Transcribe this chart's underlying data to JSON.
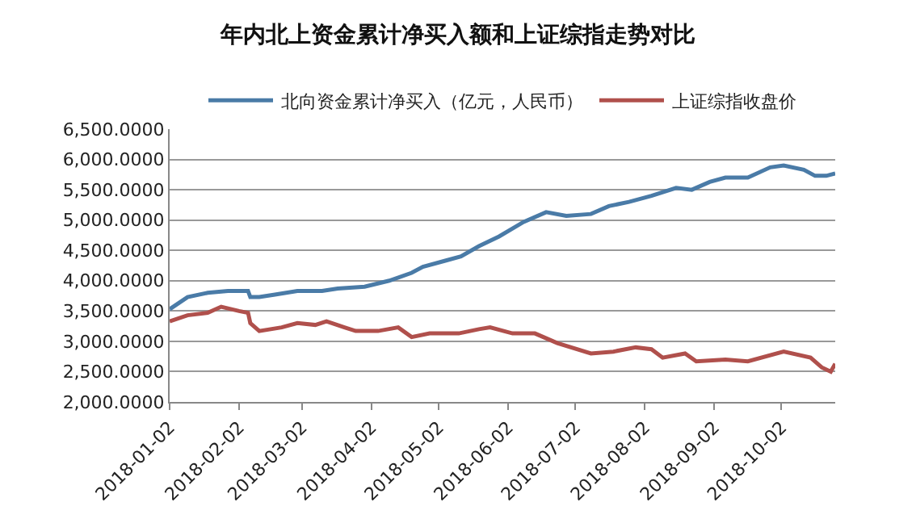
{
  "chart_data": {
    "type": "line",
    "title": "年内北上资金累计净买入额和上证综指走势对比",
    "xlim": [
      "2018-01-02",
      "2018-10-26"
    ],
    "xticks": [
      "2018-01-02",
      "2018-02-02",
      "2018-03-02",
      "2018-04-02",
      "2018-05-02",
      "2018-06-02",
      "2018-07-02",
      "2018-08-02",
      "2018-09-02",
      "2018-10-02"
    ],
    "ylim": [
      2000,
      6500
    ],
    "yticks": [
      {
        "value": 2000,
        "label": "2,000.0000"
      },
      {
        "value": 2500,
        "label": "2,500.0000"
      },
      {
        "value": 3000,
        "label": "3,000.0000"
      },
      {
        "value": 3500,
        "label": "3,500.0000"
      },
      {
        "value": 4000,
        "label": "4,000.0000"
      },
      {
        "value": 4500,
        "label": "4,500.0000"
      },
      {
        "value": 5000,
        "label": "5,000.0000"
      },
      {
        "value": 5500,
        "label": "5,500.0000"
      },
      {
        "value": 6000,
        "label": "6,000.0000"
      },
      {
        "value": 6500,
        "label": "6,500.0000"
      }
    ],
    "grid": "y",
    "legend": "top",
    "marker": "none",
    "line_style": "solid",
    "series": [
      {
        "name": "北向资金累计净买入（亿元，人民币）",
        "color": "#4a7ba7",
        "x": [
          "2018-01-02",
          "2018-01-10",
          "2018-01-19",
          "2018-01-28",
          "2018-02-06",
          "2018-02-07",
          "2018-02-11",
          "2018-02-18",
          "2018-02-28",
          "2018-03-11",
          "2018-03-18",
          "2018-03-30",
          "2018-04-10",
          "2018-04-20",
          "2018-04-25",
          "2018-05-05",
          "2018-05-12",
          "2018-05-20",
          "2018-05-29",
          "2018-06-09",
          "2018-06-19",
          "2018-06-28",
          "2018-07-09",
          "2018-07-17",
          "2018-07-26",
          "2018-08-05",
          "2018-08-16",
          "2018-08-23",
          "2018-08-31",
          "2018-09-07",
          "2018-09-17",
          "2018-09-27",
          "2018-10-03",
          "2018-10-12",
          "2018-10-17",
          "2018-10-22",
          "2018-10-26"
        ],
        "values": [
          3530,
          3730,
          3800,
          3830,
          3830,
          3730,
          3730,
          3770,
          3830,
          3830,
          3870,
          3900,
          4000,
          4130,
          4230,
          4330,
          4400,
          4570,
          4730,
          4970,
          5130,
          5070,
          5100,
          5230,
          5300,
          5400,
          5530,
          5500,
          5630,
          5700,
          5700,
          5870,
          5900,
          5830,
          5730,
          5730,
          5770
        ]
      },
      {
        "name": "上证综指收盘价",
        "color": "#b0504c",
        "x": [
          "2018-01-02",
          "2018-01-10",
          "2018-01-19",
          "2018-01-25",
          "2018-02-02",
          "2018-02-06",
          "2018-02-07",
          "2018-02-11",
          "2018-02-21",
          "2018-02-28",
          "2018-03-08",
          "2018-03-13",
          "2018-03-21",
          "2018-03-26",
          "2018-04-05",
          "2018-04-14",
          "2018-04-20",
          "2018-04-28",
          "2018-05-11",
          "2018-05-20",
          "2018-05-25",
          "2018-06-04",
          "2018-06-14",
          "2018-06-24",
          "2018-07-09",
          "2018-07-19",
          "2018-07-29",
          "2018-08-05",
          "2018-08-10",
          "2018-08-20",
          "2018-08-25",
          "2018-09-07",
          "2018-09-17",
          "2018-10-03",
          "2018-10-15",
          "2018-10-20",
          "2018-10-24",
          "2018-10-26"
        ],
        "values": [
          3330,
          3430,
          3470,
          3570,
          3500,
          3470,
          3300,
          3170,
          3230,
          3300,
          3270,
          3330,
          3230,
          3170,
          3170,
          3230,
          3070,
          3130,
          3130,
          3200,
          3230,
          3130,
          3130,
          2970,
          2800,
          2830,
          2900,
          2870,
          2730,
          2800,
          2670,
          2700,
          2670,
          2830,
          2730,
          2570,
          2500,
          2630
        ]
      }
    ]
  }
}
